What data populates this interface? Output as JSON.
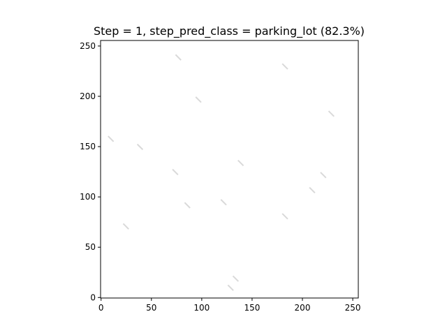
{
  "chart_data": {
    "type": "image",
    "title": "Step = 1, step_pred_class = parking_lot (82.3%)",
    "xlabel": "",
    "ylabel": "",
    "xlim": [
      -0.5,
      255.5
    ],
    "ylim": [
      255.5,
      -0.5
    ],
    "xticks": [
      0,
      50,
      100,
      150,
      200,
      250
    ],
    "yticks": [
      0,
      50,
      100,
      150,
      200,
      250
    ],
    "grid": false,
    "patch_size": 12,
    "patches": [
      {
        "x": 132,
        "y": 13,
        "color": "#7e7f7d"
      },
      {
        "x": 137,
        "y": 22,
        "color": "#a8a896"
      },
      {
        "x": 28,
        "y": 74,
        "color": "#5f584d"
      },
      {
        "x": 186,
        "y": 84,
        "color": "#b5b2a2"
      },
      {
        "x": 89,
        "y": 95,
        "color": "#5e606c"
      },
      {
        "x": 125,
        "y": 98,
        "color": "#5d606c"
      },
      {
        "x": 213,
        "y": 110,
        "color": "#a9a798"
      },
      {
        "x": 224,
        "y": 125,
        "color": "#9f9f91"
      },
      {
        "x": 77,
        "y": 128,
        "color": "#5c5f69"
      },
      {
        "x": 142,
        "y": 137,
        "color": "#62636b"
      },
      {
        "x": 42,
        "y": 153,
        "color": "#6c5d5a"
      },
      {
        "x": 13,
        "y": 161,
        "color": "#767a82"
      },
      {
        "x": 232,
        "y": 186,
        "color": "#77746c"
      },
      {
        "x": 100,
        "y": 200,
        "color": "#6f6d66"
      },
      {
        "x": 186,
        "y": 233,
        "color": "#6e6c66"
      },
      {
        "x": 80,
        "y": 242,
        "color": "#8a887a"
      }
    ]
  }
}
